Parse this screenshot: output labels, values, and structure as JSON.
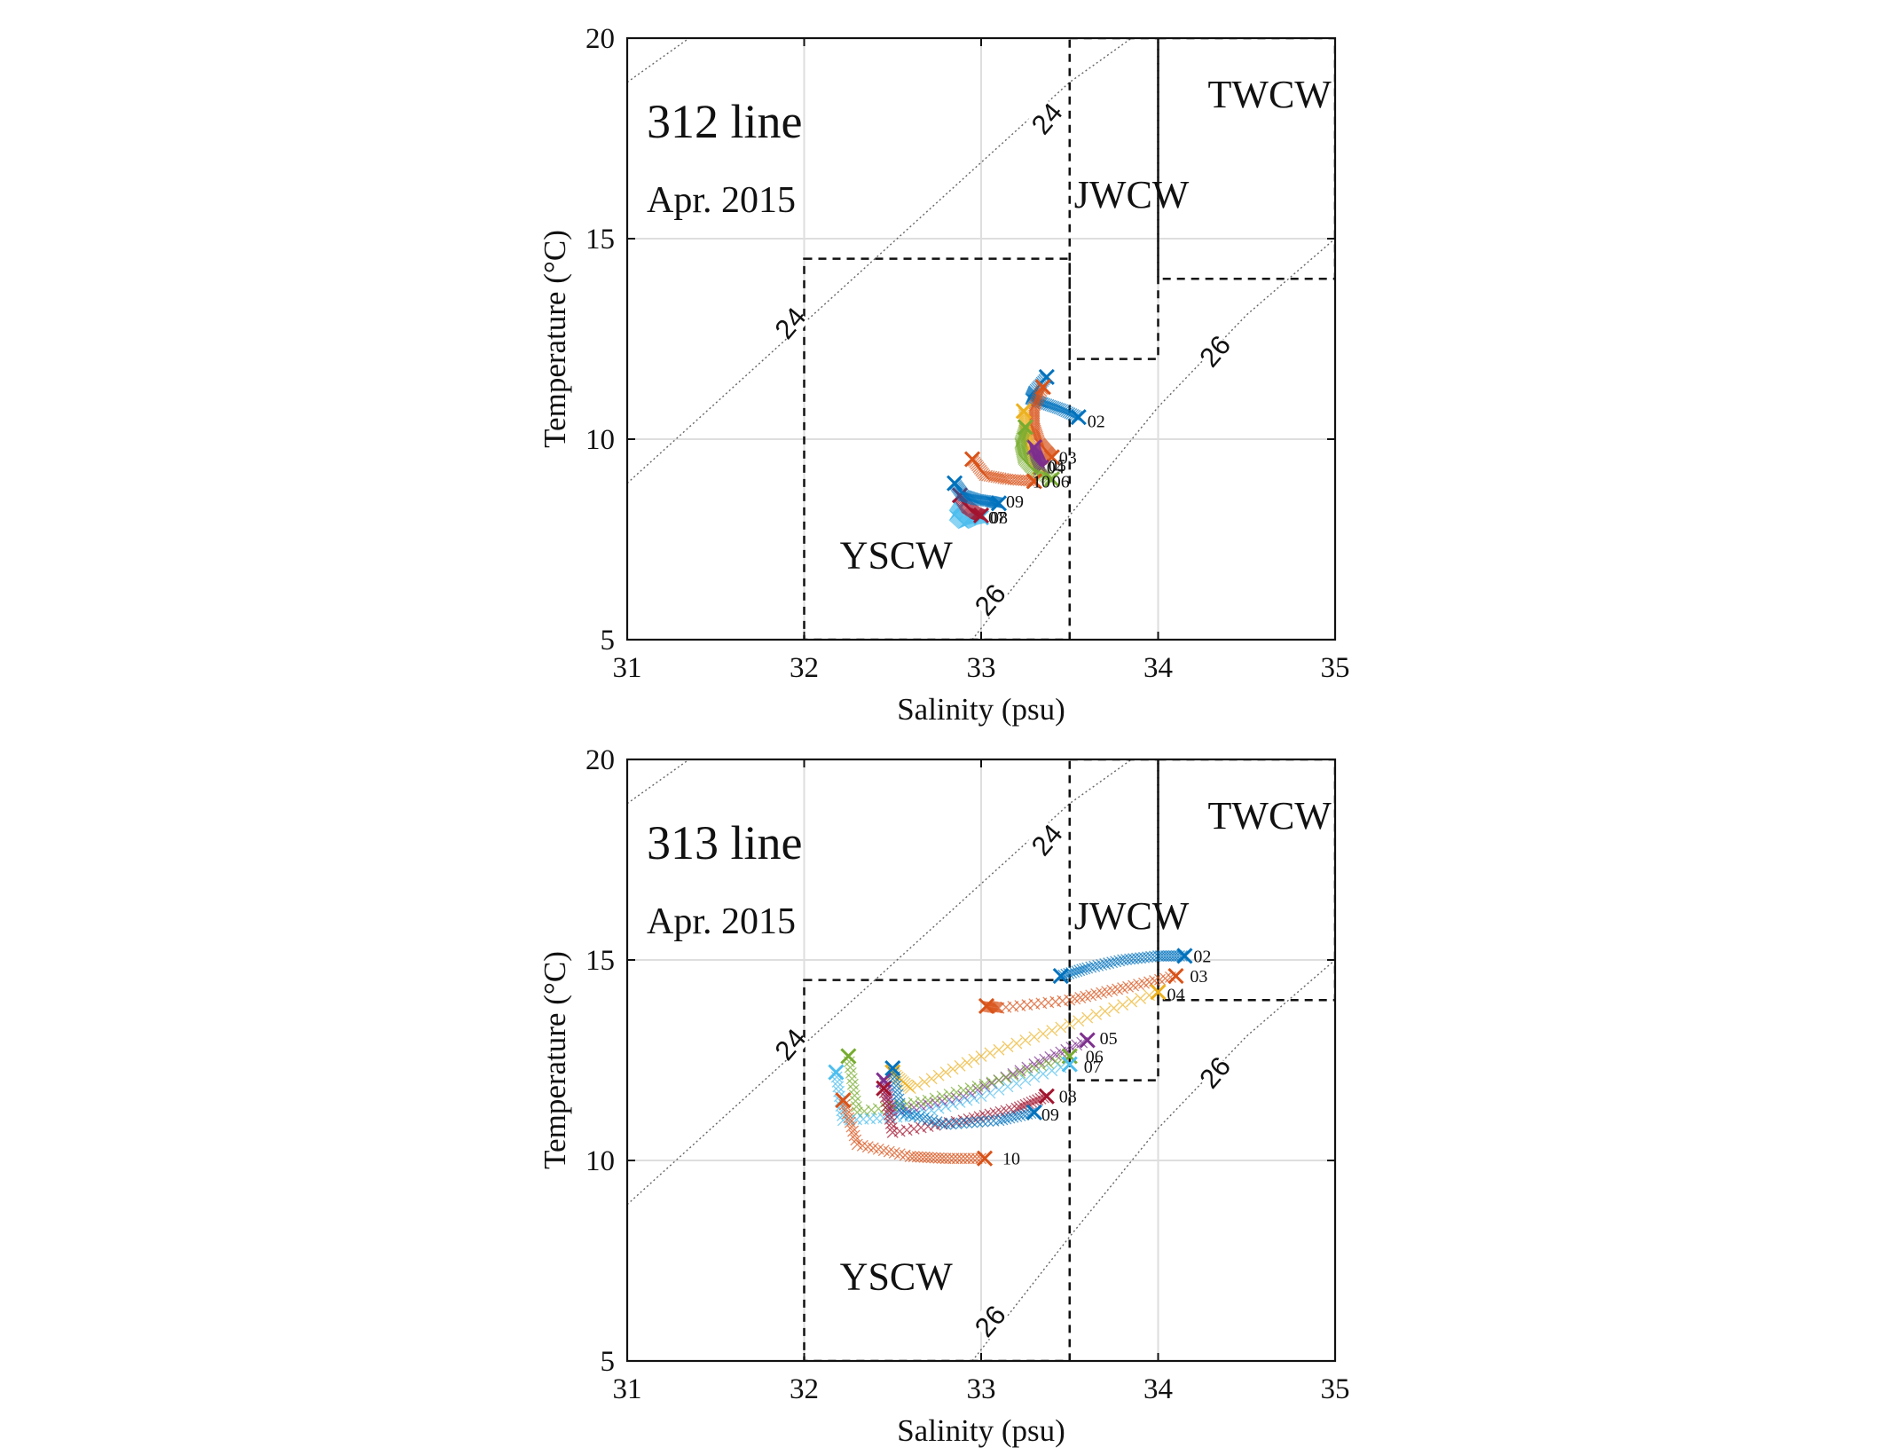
{
  "chart_data": [
    {
      "type": "scatter",
      "panel_title": "312 line",
      "panel_date": "Apr. 2015",
      "xlabel": "Salinity (psu)",
      "ylabel": "Temperature (°C)",
      "xlim": [
        31,
        35
      ],
      "ylim": [
        5,
        20
      ],
      "xticks": [
        "31",
        "32",
        "33",
        "34",
        "35"
      ],
      "yticks": [
        "5",
        "10",
        "15",
        "20"
      ],
      "grid": true,
      "water_masses": [
        {
          "name": "TWCW",
          "s_range": [
            34.0,
            35.0
          ],
          "t_range": [
            14.0,
            20.0
          ],
          "label_at": [
            34.63,
            18.5
          ]
        },
        {
          "name": "JWCW",
          "s_range": [
            33.5,
            34.0
          ],
          "t_range": [
            12.0,
            20.0
          ],
          "label_at": [
            33.85,
            16.0
          ]
        },
        {
          "name": "YSCW",
          "s_range": [
            32.0,
            33.5
          ],
          "t_range": [
            5.0,
            14.5
          ],
          "label_at": [
            32.52,
            7.0
          ]
        }
      ],
      "isopycnals": [
        {
          "sigma": "23",
          "points": [
            [
              31.0,
              18.9
            ],
            [
              31.35,
              20.0
            ]
          ]
        },
        {
          "sigma": "24",
          "points": [
            [
              31.0,
              8.9
            ],
            [
              31.5,
              10.9
            ],
            [
              32.0,
              12.9
            ],
            [
              32.5,
              14.9
            ],
            [
              33.0,
              16.9
            ],
            [
              33.5,
              18.9
            ],
            [
              33.85,
              20.0
            ]
          ]
        },
        {
          "sigma": "26",
          "points": [
            [
              32.95,
              5.0
            ],
            [
              33.5,
              8.1
            ],
            [
              34.0,
              10.8
            ],
            [
              34.5,
              13.1
            ],
            [
              35.0,
              15.0
            ]
          ]
        }
      ],
      "isopycnal_labels": [
        {
          "text": "24",
          "s": 33.37,
          "t": 18.0
        },
        {
          "text": "24",
          "s": 31.92,
          "t": 12.9
        },
        {
          "text": "26",
          "s": 34.32,
          "t": 12.2
        },
        {
          "text": "26",
          "s": 33.05,
          "t": 6.0
        }
      ],
      "series": [
        {
          "name": "02",
          "color": "#0072BD",
          "points": [
            [
              33.37,
              11.55
            ],
            [
              33.3,
              11.2
            ],
            [
              33.28,
              11.0
            ],
            [
              33.35,
              10.9
            ],
            [
              33.45,
              10.75
            ],
            [
              33.55,
              10.55
            ]
          ],
          "label_at": [
            33.58,
            10.45
          ]
        },
        {
          "name": "03",
          "color": "#D95319",
          "points": [
            [
              33.35,
              11.3
            ],
            [
              33.3,
              10.8
            ],
            [
              33.3,
              10.3
            ],
            [
              33.33,
              9.9
            ],
            [
              33.37,
              9.7
            ],
            [
              33.4,
              9.55
            ]
          ],
          "label_at": [
            33.42,
            9.55
          ]
        },
        {
          "name": "04",
          "color": "#EDB120",
          "points": [
            [
              33.24,
              10.7
            ],
            [
              33.25,
              10.2
            ],
            [
              33.27,
              9.8
            ],
            [
              33.3,
              9.5
            ],
            [
              33.33,
              9.3
            ]
          ],
          "label_at": [
            33.35,
            9.3
          ]
        },
        {
          "name": "05",
          "color": "#7E2F8E",
          "points": [
            [
              33.3,
              9.8
            ],
            [
              33.31,
              9.6
            ],
            [
              33.32,
              9.5
            ],
            [
              33.33,
              9.4
            ],
            [
              33.34,
              9.3
            ]
          ],
          "label_at": [
            33.36,
            9.35
          ]
        },
        {
          "name": "06",
          "color": "#77AC30",
          "points": [
            [
              33.25,
              10.3
            ],
            [
              33.22,
              9.9
            ],
            [
              33.24,
              9.5
            ],
            [
              33.3,
              9.2
            ],
            [
              33.4,
              9.0
            ]
          ],
          "label_at": [
            33.38,
            8.95
          ]
        },
        {
          "name": "07",
          "color": "#4DBEEE",
          "points": [
            [
              32.88,
              8.3
            ],
            [
              32.85,
              8.1
            ],
            [
              32.9,
              7.9
            ],
            [
              32.95,
              8.0
            ],
            [
              33.0,
              8.05
            ]
          ],
          "label_at": [
            33.02,
            8.05
          ]
        },
        {
          "name": "08",
          "color": "#A2142F",
          "points": [
            [
              32.88,
              8.6
            ],
            [
              32.92,
              8.3
            ],
            [
              32.97,
              8.15
            ],
            [
              33.0,
              8.1
            ]
          ],
          "label_at": [
            33.03,
            8.05
          ]
        },
        {
          "name": "09",
          "color": "#0072BD",
          "points": [
            [
              32.85,
              8.9
            ],
            [
              32.9,
              8.6
            ],
            [
              32.97,
              8.5
            ],
            [
              33.05,
              8.45
            ],
            [
              33.1,
              8.4
            ]
          ],
          "label_at": [
            33.12,
            8.45
          ]
        },
        {
          "name": "10",
          "color": "#D95319",
          "points": [
            [
              32.95,
              9.5
            ],
            [
              33.02,
              9.1
            ],
            [
              33.15,
              9.0
            ],
            [
              33.3,
              8.95
            ]
          ],
          "label_at": [
            33.27,
            8.95
          ]
        }
      ]
    },
    {
      "type": "scatter",
      "panel_title": "313 line",
      "panel_date": "Apr. 2015",
      "xlabel": "Salinity (psu)",
      "ylabel": "Temperature (°C)",
      "xlim": [
        31,
        35
      ],
      "ylim": [
        5,
        20
      ],
      "xticks": [
        "31",
        "32",
        "33",
        "34",
        "35"
      ],
      "yticks": [
        "5",
        "10",
        "15",
        "20"
      ],
      "grid": true,
      "water_masses": [
        {
          "name": "TWCW",
          "s_range": [
            34.0,
            35.0
          ],
          "t_range": [
            14.0,
            20.0
          ],
          "label_at": [
            34.63,
            18.5
          ]
        },
        {
          "name": "JWCW",
          "s_range": [
            33.5,
            34.0
          ],
          "t_range": [
            12.0,
            20.0
          ],
          "label_at": [
            33.85,
            16.0
          ]
        },
        {
          "name": "YSCW",
          "s_range": [
            32.0,
            33.5
          ],
          "t_range": [
            5.0,
            14.5
          ],
          "label_at": [
            32.52,
            7.0
          ]
        }
      ],
      "isopycnals": [
        {
          "sigma": "23",
          "points": [
            [
              31.0,
              18.9
            ],
            [
              31.35,
              20.0
            ]
          ]
        },
        {
          "sigma": "24",
          "points": [
            [
              31.0,
              8.9
            ],
            [
              31.5,
              10.9
            ],
            [
              32.0,
              12.9
            ],
            [
              32.5,
              14.9
            ],
            [
              33.0,
              16.9
            ],
            [
              33.5,
              18.9
            ],
            [
              33.85,
              20.0
            ]
          ]
        },
        {
          "sigma": "26",
          "points": [
            [
              32.95,
              5.0
            ],
            [
              33.5,
              8.1
            ],
            [
              34.0,
              10.8
            ],
            [
              34.5,
              13.1
            ],
            [
              35.0,
              15.0
            ]
          ]
        }
      ],
      "isopycnal_labels": [
        {
          "text": "24",
          "s": 33.37,
          "t": 18.0
        },
        {
          "text": "24",
          "s": 31.92,
          "t": 12.9
        },
        {
          "text": "26",
          "s": 34.32,
          "t": 12.2
        },
        {
          "text": "26",
          "s": 33.05,
          "t": 6.0
        }
      ],
      "series": [
        {
          "name": "02",
          "color": "#0072BD",
          "points": [
            [
              33.45,
              14.6
            ],
            [
              33.6,
              14.8
            ],
            [
              33.8,
              15.0
            ],
            [
              34.0,
              15.1
            ],
            [
              34.15,
              15.1
            ]
          ],
          "label_at": [
            34.18,
            15.1
          ]
        },
        {
          "name": "03",
          "color": "#D95319",
          "points": [
            [
              33.03,
              13.85
            ],
            [
              33.1,
              13.8
            ],
            [
              33.5,
              14.0
            ],
            [
              33.8,
              14.3
            ],
            [
              34.1,
              14.6
            ]
          ],
          "label_at": [
            34.16,
            14.6
          ]
        },
        {
          "name": "04",
          "color": "#EDB120",
          "points": [
            [
              32.5,
              12.2
            ],
            [
              32.6,
              11.8
            ],
            [
              33.0,
              12.6
            ],
            [
              33.5,
              13.4
            ],
            [
              34.0,
              14.2
            ]
          ],
          "label_at": [
            34.03,
            14.15
          ]
        },
        {
          "name": "05",
          "color": "#7E2F8E",
          "points": [
            [
              32.45,
              12.0
            ],
            [
              32.5,
              11.2
            ],
            [
              32.9,
              11.6
            ],
            [
              33.3,
              12.4
            ],
            [
              33.6,
              13.0
            ]
          ],
          "label_at": [
            33.65,
            13.05
          ]
        },
        {
          "name": "06",
          "color": "#77AC30",
          "points": [
            [
              32.25,
              12.6
            ],
            [
              32.3,
              11.2
            ],
            [
              32.7,
              11.5
            ],
            [
              33.1,
              12.0
            ],
            [
              33.5,
              12.6
            ]
          ],
          "label_at": [
            33.57,
            12.6
          ]
        },
        {
          "name": "07",
          "color": "#4DBEEE",
          "points": [
            [
              32.18,
              12.2
            ],
            [
              32.22,
              11.0
            ],
            [
              32.6,
              11.1
            ],
            [
              33.0,
              11.6
            ],
            [
              33.5,
              12.4
            ]
          ],
          "label_at": [
            33.56,
            12.35
          ]
        },
        {
          "name": "08",
          "color": "#A2142F",
          "points": [
            [
              32.45,
              11.8
            ],
            [
              32.5,
              10.7
            ],
            [
              32.9,
              11.0
            ],
            [
              33.2,
              11.3
            ],
            [
              33.37,
              11.6
            ]
          ],
          "label_at": [
            33.42,
            11.6
          ]
        },
        {
          "name": "09",
          "color": "#0072BD",
          "points": [
            [
              32.5,
              12.3
            ],
            [
              32.55,
              11.2
            ],
            [
              32.8,
              10.9
            ],
            [
              33.1,
              11.0
            ],
            [
              33.3,
              11.2
            ]
          ],
          "label_at": [
            33.32,
            11.15
          ]
        },
        {
          "name": "10",
          "color": "#D95319",
          "points": [
            [
              32.22,
              11.5
            ],
            [
              32.3,
              10.4
            ],
            [
              32.6,
              10.1
            ],
            [
              32.8,
              10.05
            ],
            [
              33.02,
              10.05
            ]
          ],
          "label_at": [
            33.1,
            10.05
          ]
        }
      ]
    }
  ]
}
